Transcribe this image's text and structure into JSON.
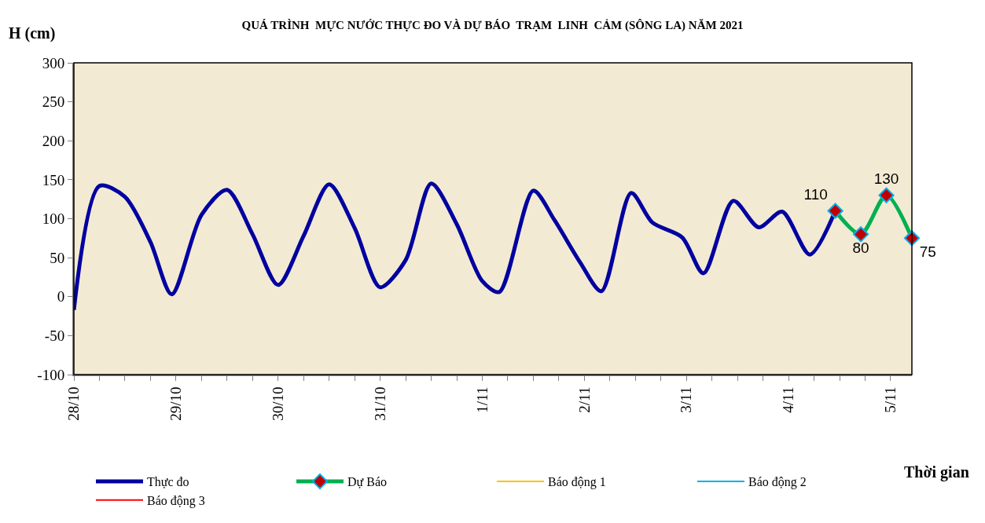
{
  "chart_data": {
    "type": "line",
    "title": "QUÁ TRÌNH  MỰC NƯỚC THỰC ĐO VÀ DỰ BÁO  TRẠM  LINH  CẢM (SÔNG LA) NĂM 2021",
    "ylabel": "H (cm)",
    "xlabel": "Thời gian",
    "xlim": [
      "2021-10-28T00:00",
      "2021-11-05T05:00"
    ],
    "ylim": [
      -100,
      300
    ],
    "yticks": [
      -100,
      -50,
      0,
      50,
      100,
      150,
      200,
      250,
      300
    ],
    "xticks": [
      {
        "value": "2021-10-28T00:00",
        "label": "28/10"
      },
      {
        "value": "2021-10-28T06:00",
        "label": null
      },
      {
        "value": "2021-10-28T12:00",
        "label": null
      },
      {
        "value": "2021-10-28T18:00",
        "label": null
      },
      {
        "value": "2021-10-29T00:00",
        "label": "29/10"
      },
      {
        "value": "2021-10-29T06:00",
        "label": null
      },
      {
        "value": "2021-10-29T12:00",
        "label": null
      },
      {
        "value": "2021-10-29T18:00",
        "label": null
      },
      {
        "value": "2021-10-30T00:00",
        "label": "30/10"
      },
      {
        "value": "2021-10-30T06:00",
        "label": null
      },
      {
        "value": "2021-10-30T12:00",
        "label": null
      },
      {
        "value": "2021-10-30T18:00",
        "label": null
      },
      {
        "value": "2021-10-31T00:00",
        "label": "31/10"
      },
      {
        "value": "2021-10-31T06:00",
        "label": null
      },
      {
        "value": "2021-10-31T12:00",
        "label": null
      },
      {
        "value": "2021-10-31T18:00",
        "label": null
      },
      {
        "value": "2021-11-01T00:00",
        "label": "1/11"
      },
      {
        "value": "2021-11-01T06:00",
        "label": null
      },
      {
        "value": "2021-11-01T12:00",
        "label": null
      },
      {
        "value": "2021-11-01T18:00",
        "label": null
      },
      {
        "value": "2021-11-02T00:00",
        "label": "2/11"
      },
      {
        "value": "2021-11-02T06:00",
        "label": null
      },
      {
        "value": "2021-11-02T12:00",
        "label": null
      },
      {
        "value": "2021-11-02T18:00",
        "label": null
      },
      {
        "value": "2021-11-03T00:00",
        "label": "3/11"
      },
      {
        "value": "2021-11-03T06:00",
        "label": null
      },
      {
        "value": "2021-11-03T12:00",
        "label": null
      },
      {
        "value": "2021-11-03T18:00",
        "label": null
      },
      {
        "value": "2021-11-04T00:00",
        "label": "4/11"
      },
      {
        "value": "2021-11-04T06:00",
        "label": null
      },
      {
        "value": "2021-11-04T12:00",
        "label": null
      },
      {
        "value": "2021-11-04T18:00",
        "label": null
      },
      {
        "value": "2021-11-05T00:00",
        "label": "5/11"
      }
    ],
    "grid": false,
    "legend": "bottom",
    "series": [
      {
        "name": "Thực đo",
        "color": "#0000a0",
        "marker": "none",
        "x": [
          "2021-10-28T00:00",
          "2021-10-28T06:00",
          "2021-10-28T12:00",
          "2021-10-28T18:00",
          "2021-10-28T23:00",
          "2021-10-29T06:00",
          "2021-10-29T12:00",
          "2021-10-29T18:00",
          "2021-10-30T00:00",
          "2021-10-30T06:00",
          "2021-10-30T12:00",
          "2021-10-30T18:00",
          "2021-10-31T00:00",
          "2021-10-31T06:00",
          "2021-10-31T12:00",
          "2021-10-31T18:00",
          "2021-11-01T00:00",
          "2021-11-01T04:00",
          "2021-11-01T12:00",
          "2021-11-01T17:00",
          "2021-11-01T23:00",
          "2021-11-02T04:00",
          "2021-11-02T11:00",
          "2021-11-02T16:00",
          "2021-11-02T23:00",
          "2021-11-03T04:00",
          "2021-11-03T11:00",
          "2021-11-03T17:00",
          "2021-11-03T22:30",
          "2021-11-04T05:00",
          "2021-11-04T11:00"
        ],
        "values": [
          -17,
          142,
          128,
          70,
          3,
          105,
          137,
          80,
          15,
          78,
          144,
          88,
          12,
          47,
          145,
          93,
          20,
          6,
          136,
          98,
          44,
          7,
          133,
          95,
          76,
          30,
          123,
          89,
          109,
          54,
          110
        ]
      },
      {
        "name": "Dự Báo",
        "color": "#00b050",
        "marker": "diamond",
        "data_labels": true,
        "x": [
          "2021-11-04T11:00",
          "2021-11-04T17:00",
          "2021-11-04T23:00",
          "2021-11-05T05:00"
        ],
        "values": [
          110,
          80,
          130,
          75
        ]
      },
      {
        "name": "Báo động 1",
        "color": "#ffc000",
        "marker": "none"
      },
      {
        "name": "Báo động 2",
        "color": "#00b0f0",
        "marker": "none"
      },
      {
        "name": "Báo động 3",
        "color": "#ff0000",
        "marker": "none"
      }
    ]
  }
}
